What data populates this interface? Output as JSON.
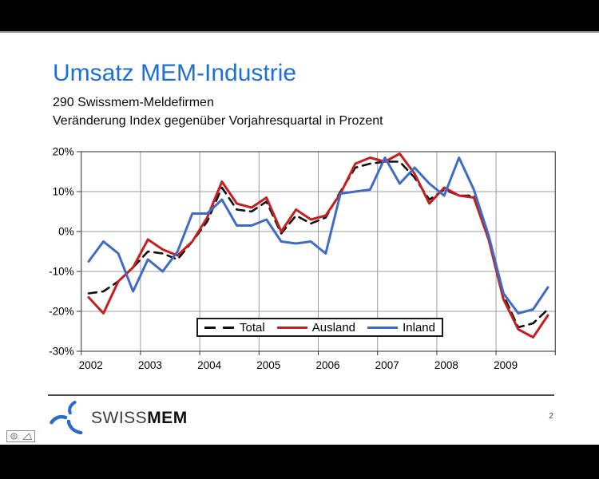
{
  "slide": {
    "title": "Umsatz MEM-Industrie",
    "subtitle_line1": "290 Swissmem-Meldefirmen",
    "subtitle_line2": "Veränderung Index gegenüber Vorjahresquartal in Prozent",
    "page_number": "2",
    "logo_brand_prefix": "SWISS",
    "logo_brand_suffix": "MEM",
    "colors": {
      "title_blue": "#1c70d8",
      "logo_blue": "#2b6acc"
    }
  },
  "chart_data": {
    "type": "line",
    "title": "",
    "xlabel": "",
    "ylabel": "",
    "grid": true,
    "legend_position": "bottom-center-inside",
    "x_years": [
      "2002",
      "2003",
      "2004",
      "2005",
      "2006",
      "2007",
      "2008",
      "2009"
    ],
    "points_per_year": 4,
    "x_quarters": [
      "2002Q1",
      "2002Q2",
      "2002Q3",
      "2002Q4",
      "2003Q1",
      "2003Q2",
      "2003Q3",
      "2003Q4",
      "2004Q1",
      "2004Q2",
      "2004Q3",
      "2004Q4",
      "2005Q1",
      "2005Q2",
      "2005Q3",
      "2005Q4",
      "2006Q1",
      "2006Q2",
      "2006Q3",
      "2006Q4",
      "2007Q1",
      "2007Q2",
      "2007Q3",
      "2007Q4",
      "2008Q1",
      "2008Q2",
      "2008Q3",
      "2008Q4",
      "2009Q1",
      "2009Q2",
      "2009Q3",
      "2009Q4"
    ],
    "y_axis": {
      "min": -30,
      "max": 20,
      "tick_values": [
        20,
        10,
        0,
        -10,
        -20,
        -30
      ],
      "tick_labels": [
        "20%",
        "10%",
        "0%",
        "-10%",
        "-20%",
        "-30%"
      ]
    },
    "series": [
      {
        "name": "Total",
        "color": "#111111",
        "style": "dashed",
        "values": [
          -15.5,
          -15,
          -12.5,
          -9,
          -5,
          -5.5,
          -7,
          -2.5,
          2.5,
          11,
          5.5,
          5,
          7.5,
          -0.5,
          4,
          2,
          3.5,
          10,
          16,
          17,
          17.5,
          17.5,
          13.5,
          8,
          10.5,
          9,
          9,
          -1.5,
          -16,
          -24,
          -23,
          -19.5
        ]
      },
      {
        "name": "Ausland",
        "color": "#c42020",
        "style": "solid",
        "values": [
          -16.5,
          -20.5,
          -12.5,
          -9,
          -2,
          -4.5,
          -6,
          -2.5,
          3.5,
          12.5,
          7,
          6,
          8.5,
          0,
          5.5,
          3,
          4,
          9.5,
          17,
          18.5,
          17.5,
          19.5,
          14.5,
          7,
          11,
          9,
          8.5,
          -2,
          -17,
          -24.5,
          -26.5,
          -21
        ]
      },
      {
        "name": "Inland",
        "color": "#3f6bc8",
        "style": "solid",
        "values": [
          -7.5,
          -2.5,
          -5.5,
          -15,
          -7,
          -10,
          -5,
          4.5,
          4.5,
          8,
          1.5,
          1.5,
          3,
          -2.5,
          -3,
          -2.5,
          -5.5,
          9.5,
          10,
          10.5,
          18.5,
          12,
          16,
          12,
          9,
          18.5,
          10.5,
          -1,
          -15.5,
          -20.5,
          -19.5,
          -14
        ]
      }
    ]
  }
}
